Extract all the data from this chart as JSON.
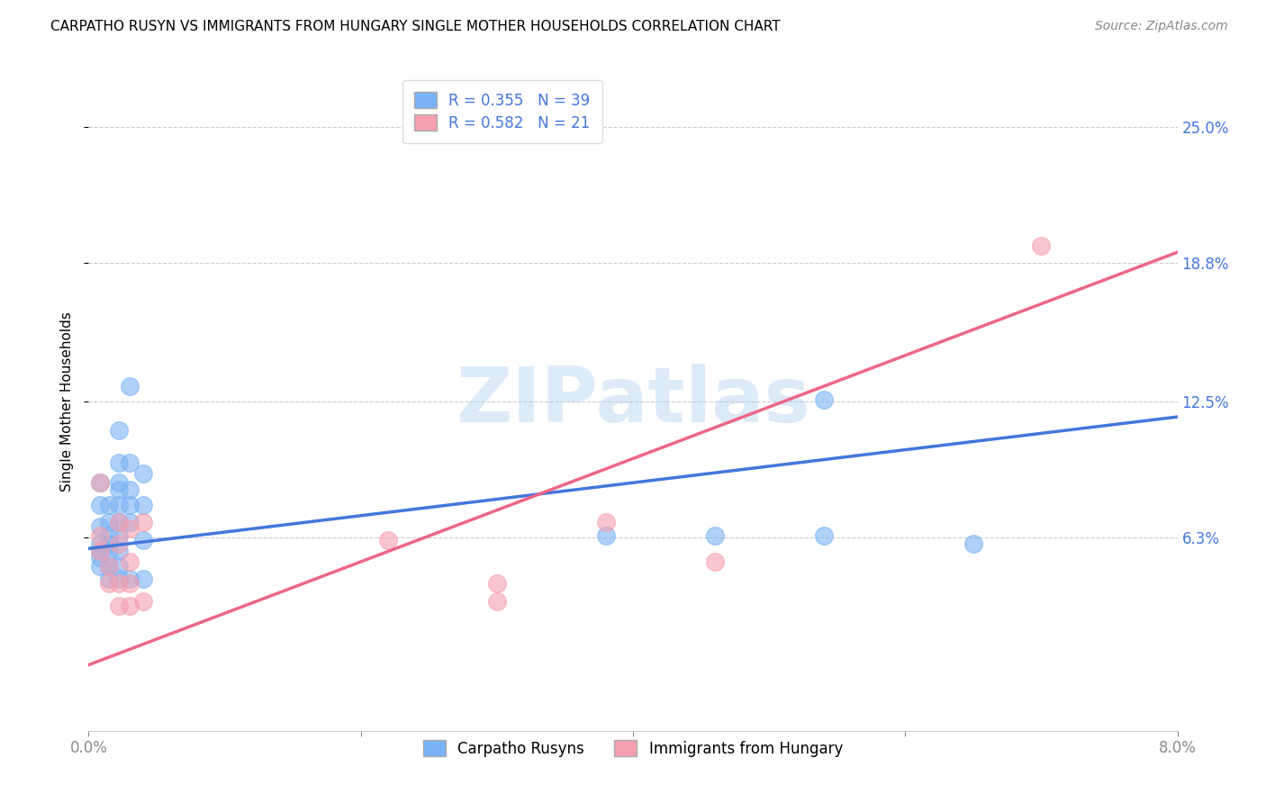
{
  "title": "CARPATHO RUSYN VS IMMIGRANTS FROM HUNGARY SINGLE MOTHER HOUSEHOLDS CORRELATION CHART",
  "source": "Source: ZipAtlas.com",
  "ylabel": "Single Mother Households",
  "ytick_labels": [
    "25.0%",
    "18.8%",
    "12.5%",
    "6.3%"
  ],
  "ytick_values": [
    0.25,
    0.188,
    0.125,
    0.063
  ],
  "xlim": [
    0.0,
    0.08
  ],
  "ylim": [
    -0.025,
    0.275
  ],
  "legend_line1": "R = 0.355   N = 39",
  "legend_line2": "R = 0.582   N = 21",
  "blue_color": "#7ab3f5",
  "pink_color": "#f5a0b0",
  "blue_line_color": "#4477dd",
  "pink_line_color": "#ee6688",
  "blue_scatter": [
    [
      0.0008,
      0.088
    ],
    [
      0.0008,
      0.078
    ],
    [
      0.0008,
      0.068
    ],
    [
      0.0008,
      0.06
    ],
    [
      0.0008,
      0.057
    ],
    [
      0.0008,
      0.054
    ],
    [
      0.0008,
      0.05
    ],
    [
      0.0015,
      0.078
    ],
    [
      0.0015,
      0.07
    ],
    [
      0.0015,
      0.064
    ],
    [
      0.0015,
      0.06
    ],
    [
      0.0015,
      0.057
    ],
    [
      0.0015,
      0.05
    ],
    [
      0.0015,
      0.044
    ],
    [
      0.0022,
      0.112
    ],
    [
      0.0022,
      0.097
    ],
    [
      0.0022,
      0.088
    ],
    [
      0.0022,
      0.085
    ],
    [
      0.0022,
      0.078
    ],
    [
      0.0022,
      0.07
    ],
    [
      0.0022,
      0.064
    ],
    [
      0.0022,
      0.057
    ],
    [
      0.0022,
      0.05
    ],
    [
      0.0022,
      0.044
    ],
    [
      0.003,
      0.132
    ],
    [
      0.003,
      0.097
    ],
    [
      0.003,
      0.085
    ],
    [
      0.003,
      0.078
    ],
    [
      0.003,
      0.07
    ],
    [
      0.003,
      0.044
    ],
    [
      0.004,
      0.092
    ],
    [
      0.004,
      0.078
    ],
    [
      0.004,
      0.062
    ],
    [
      0.004,
      0.044
    ],
    [
      0.038,
      0.064
    ],
    [
      0.046,
      0.064
    ],
    [
      0.054,
      0.064
    ],
    [
      0.054,
      0.126
    ],
    [
      0.065,
      0.06
    ]
  ],
  "pink_scatter": [
    [
      0.0008,
      0.088
    ],
    [
      0.0008,
      0.064
    ],
    [
      0.0008,
      0.057
    ],
    [
      0.0015,
      0.05
    ],
    [
      0.0015,
      0.042
    ],
    [
      0.0022,
      0.07
    ],
    [
      0.0022,
      0.06
    ],
    [
      0.0022,
      0.042
    ],
    [
      0.0022,
      0.032
    ],
    [
      0.003,
      0.067
    ],
    [
      0.003,
      0.052
    ],
    [
      0.003,
      0.042
    ],
    [
      0.003,
      0.032
    ],
    [
      0.004,
      0.07
    ],
    [
      0.004,
      0.034
    ],
    [
      0.022,
      0.062
    ],
    [
      0.03,
      0.042
    ],
    [
      0.03,
      0.034
    ],
    [
      0.038,
      0.07
    ],
    [
      0.046,
      0.052
    ],
    [
      0.07,
      0.196
    ]
  ],
  "blue_trend_x": [
    0.0,
    0.08
  ],
  "blue_trend_y": [
    0.058,
    0.118
  ],
  "pink_trend_x": [
    0.0,
    0.08
  ],
  "pink_trend_y": [
    0.005,
    0.193
  ],
  "watermark_text": "ZIPatlas",
  "watermark_color": "#aaccee",
  "background_color": "#ffffff",
  "grid_color": "#cccccc",
  "legend_label1": "Carpatho Rusyns",
  "legend_label2": "Immigrants from Hungary"
}
